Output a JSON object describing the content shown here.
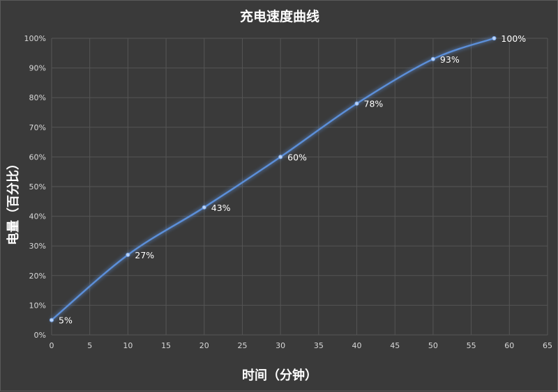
{
  "chart_data": {
    "type": "line",
    "title": "充电速度曲线",
    "xlabel": "时间（分钟）",
    "ylabel": "电量（百分比）",
    "xlim": [
      0,
      65
    ],
    "ylim": [
      0,
      100
    ],
    "x_ticks": [
      0,
      5,
      10,
      15,
      20,
      25,
      30,
      35,
      40,
      45,
      50,
      55,
      60,
      65
    ],
    "y_ticks": [
      0,
      10,
      20,
      30,
      40,
      50,
      60,
      70,
      80,
      90,
      100
    ],
    "y_tick_labels": [
      "0%",
      "10%",
      "20%",
      "30%",
      "40%",
      "50%",
      "60%",
      "70%",
      "80%",
      "90%",
      "100%"
    ],
    "grid": true,
    "legend": "none",
    "series": [
      {
        "x": [
          0,
          10,
          20,
          30,
          40,
          50,
          58
        ],
        "values": [
          5,
          27,
          43,
          60,
          78,
          93,
          100
        ],
        "labels": [
          "5%",
          "27%",
          "43%",
          "60%",
          "78%",
          "93%",
          "100%"
        ]
      }
    ],
    "colors": {
      "line": "#5b8fd9",
      "grid": "#555555",
      "background": "#3a3a3a",
      "text": "#ffffff"
    }
  }
}
